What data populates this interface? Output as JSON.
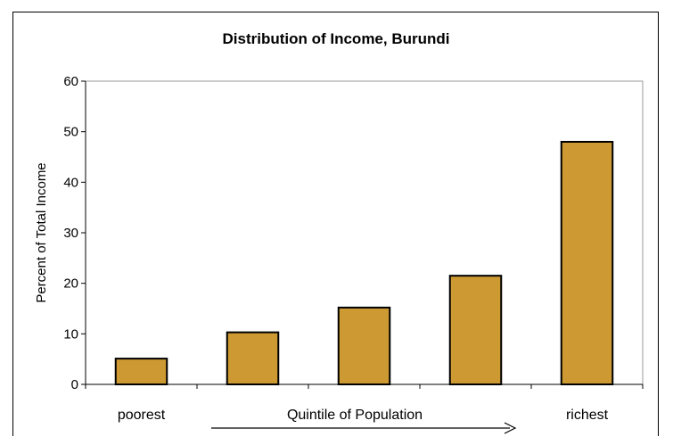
{
  "chart_data": {
    "type": "bar",
    "title": "Distribution of Income, Burundi",
    "ylabel": "Percent of Total Income",
    "xlabel": "Quintile of Population",
    "category_labels": [
      "poorest",
      "",
      "",
      "",
      "richest"
    ],
    "values": [
      5.1,
      10.3,
      15.2,
      21.5,
      48.0
    ],
    "ylim": [
      0,
      60
    ],
    "yticks": [
      "0",
      "10",
      "20",
      "30",
      "40",
      "50",
      "60"
    ],
    "bar_color": "#CC9933",
    "grid": false,
    "legend": "none"
  }
}
